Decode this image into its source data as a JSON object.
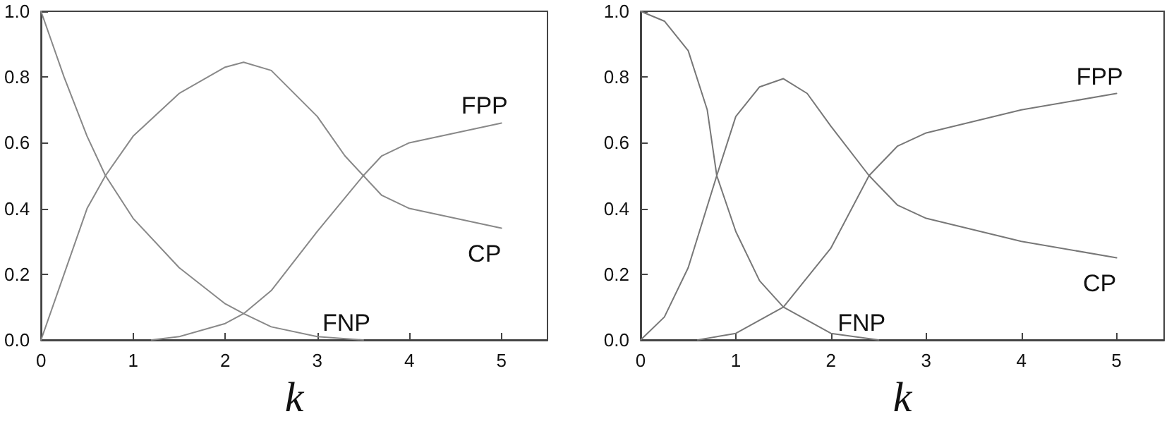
{
  "chart_data": [
    {
      "type": "line",
      "xlabel": "k",
      "xlim": [
        0,
        5.5
      ],
      "xticks": [
        0,
        1,
        2,
        3,
        4,
        5
      ],
      "ylim": [
        0,
        1
      ],
      "yticks": [
        {
          "value": 0,
          "label": "0.0"
        },
        {
          "value": 0.2,
          "label": "0.2"
        },
        {
          "value": 0.4,
          "label": "0.4"
        },
        {
          "value": 0.6,
          "label": "0.6"
        },
        {
          "value": 0.8,
          "label": "0.8"
        },
        {
          "value": 1,
          "label": "1.0"
        }
      ],
      "grid": false,
      "legend": false,
      "marker": "none",
      "line_style": "solid",
      "series": [
        {
          "name": "FNP",
          "color": "#888888",
          "x": [
            0,
            0.25,
            0.5,
            0.7,
            1,
            1.5,
            2,
            2.2,
            2.5,
            3,
            3.5
          ],
          "values": [
            1.0,
            0.8,
            0.62,
            0.5,
            0.37,
            0.22,
            0.11,
            0.08,
            0.04,
            0.01,
            0
          ]
        },
        {
          "name": "CP",
          "color": "#888888",
          "x": [
            0,
            0.25,
            0.5,
            0.7,
            1,
            1.5,
            2,
            2.2,
            2.5,
            3,
            3.3,
            3.5,
            3.7,
            4,
            4.5,
            5
          ],
          "values": [
            0,
            0.2,
            0.4,
            0.5,
            0.62,
            0.75,
            0.83,
            0.845,
            0.82,
            0.68,
            0.56,
            0.5,
            0.44,
            0.4,
            0.37,
            0.34
          ]
        },
        {
          "name": "FPP",
          "color": "#888888",
          "x": [
            1.2,
            1.5,
            2,
            2.2,
            2.5,
            3,
            3.5,
            3.7,
            4,
            4.5,
            5
          ],
          "values": [
            0,
            0.01,
            0.05,
            0.08,
            0.15,
            0.33,
            0.5,
            0.56,
            0.6,
            0.63,
            0.66
          ]
        }
      ]
    },
    {
      "type": "line",
      "xlabel": "k",
      "xlim": [
        0,
        5.5
      ],
      "xticks": [
        0,
        1,
        2,
        3,
        4,
        5
      ],
      "ylim": [
        0,
        1
      ],
      "yticks": [
        {
          "value": 0,
          "label": "0.0"
        },
        {
          "value": 0.2,
          "label": "0.2"
        },
        {
          "value": 0.4,
          "label": "0.4"
        },
        {
          "value": 0.6,
          "label": "0.6"
        },
        {
          "value": 0.8,
          "label": "0.8"
        },
        {
          "value": 1,
          "label": "1.0"
        }
      ],
      "grid": false,
      "legend": false,
      "marker": "none",
      "line_style": "solid",
      "series": [
        {
          "name": "FNP",
          "color": "#777777",
          "x": [
            0,
            0.25,
            0.5,
            0.7,
            0.8,
            1,
            1.25,
            1.5,
            2,
            2.5
          ],
          "values": [
            1.0,
            0.97,
            0.88,
            0.7,
            0.5,
            0.33,
            0.18,
            0.1,
            0.02,
            0
          ]
        },
        {
          "name": "CP",
          "color": "#777777",
          "x": [
            0,
            0.25,
            0.5,
            0.8,
            1,
            1.25,
            1.5,
            1.75,
            2,
            2.4,
            2.7,
            3,
            4,
            5
          ],
          "values": [
            0,
            0.07,
            0.22,
            0.5,
            0.68,
            0.77,
            0.795,
            0.75,
            0.65,
            0.5,
            0.41,
            0.37,
            0.3,
            0.25
          ]
        },
        {
          "name": "FPP",
          "color": "#777777",
          "x": [
            0.6,
            1,
            1.5,
            2,
            2.4,
            2.7,
            3,
            4,
            5
          ],
          "values": [
            0,
            0.02,
            0.1,
            0.28,
            0.5,
            0.59,
            0.63,
            0.7,
            0.75
          ]
        }
      ]
    }
  ]
}
